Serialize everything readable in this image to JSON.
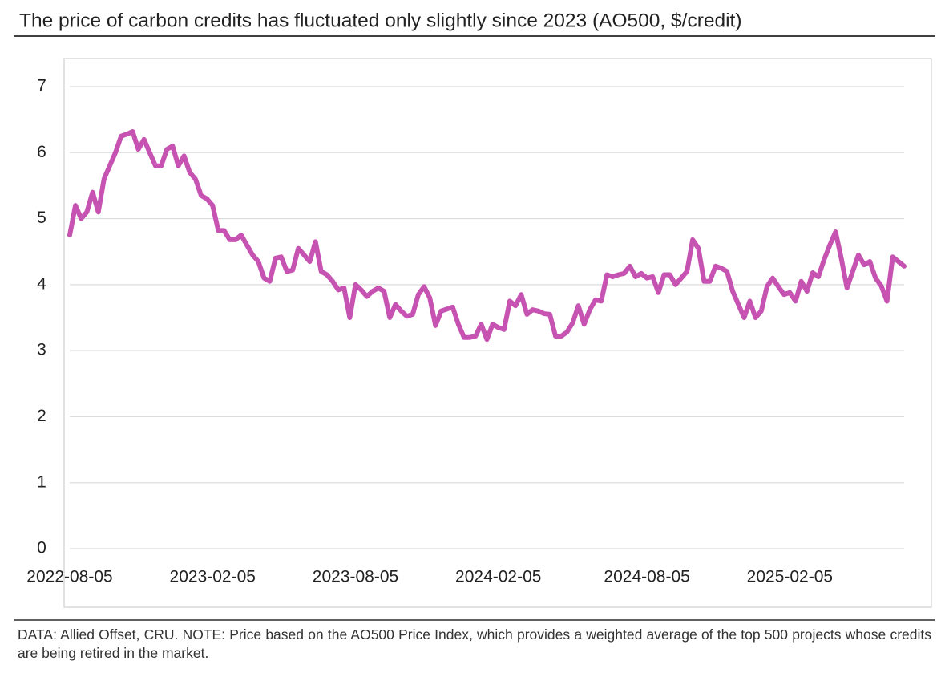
{
  "chart_data": {
    "type": "line",
    "title": "The price of carbon credits has fluctuated only slightly since 2023 (AO500, $/credit)",
    "note": "DATA: Allied Offset, CRU. NOTE: Price based on the AO500 Price Index, which provides a weighted average of the top 500 projects whose credits are being retired in the market.",
    "color": "#c653b2",
    "ylim": [
      0,
      7
    ],
    "yticks": [
      0,
      1,
      2,
      3,
      4,
      5,
      6,
      7
    ],
    "grid": true,
    "categories": [
      "2022-08-05",
      null,
      null,
      null,
      null,
      null,
      null,
      null,
      null,
      null,
      null,
      null,
      null,
      null,
      null,
      null,
      null,
      null,
      null,
      null,
      null,
      null,
      null,
      null,
      null,
      "2023-02-05",
      null,
      null,
      null,
      null,
      null,
      null,
      null,
      null,
      null,
      null,
      null,
      null,
      null,
      null,
      null,
      null,
      null,
      null,
      null,
      null,
      null,
      null,
      null,
      null,
      "2023-08-05",
      null,
      null,
      null,
      null,
      null,
      null,
      null,
      null,
      null,
      null,
      null,
      null,
      null,
      null,
      null,
      null,
      null,
      null,
      null,
      null,
      null,
      null,
      null,
      null,
      "2024-02-05",
      null,
      null,
      null,
      null,
      null,
      null,
      null,
      null,
      null,
      null,
      null,
      null,
      null,
      null,
      null,
      null,
      null,
      null,
      null,
      null,
      null,
      null,
      null,
      null,
      null,
      "2024-08-05",
      null,
      null,
      null,
      null,
      null,
      null,
      null,
      null,
      null,
      null,
      null,
      null,
      null,
      null,
      null,
      null,
      null,
      null,
      null,
      null,
      null,
      null,
      null,
      null,
      "2025-02-05",
      null,
      null,
      null,
      null,
      null,
      null,
      null,
      null,
      null,
      null,
      null,
      null,
      null,
      null,
      null,
      null,
      null,
      null,
      null,
      null
    ],
    "values": [
      4.75,
      5.2,
      5.0,
      5.1,
      5.4,
      5.1,
      5.6,
      5.8,
      6.0,
      6.25,
      6.28,
      6.32,
      6.05,
      6.2,
      6.0,
      5.8,
      5.8,
      6.05,
      6.1,
      5.8,
      5.95,
      5.7,
      5.6,
      5.35,
      5.3,
      5.2,
      4.82,
      4.82,
      4.68,
      4.68,
      4.75,
      4.6,
      4.45,
      4.35,
      4.1,
      4.05,
      4.4,
      4.42,
      4.2,
      4.22,
      4.55,
      4.45,
      4.35,
      4.65,
      4.2,
      4.15,
      4.05,
      3.92,
      3.95,
      3.5,
      4.0,
      3.92,
      3.82,
      3.9,
      3.95,
      3.9,
      3.5,
      3.7,
      3.6,
      3.52,
      3.55,
      3.85,
      3.97,
      3.8,
      3.38,
      3.6,
      3.63,
      3.66,
      3.4,
      3.2,
      3.2,
      3.22,
      3.4,
      3.17,
      3.4,
      3.35,
      3.32,
      3.75,
      3.68,
      3.85,
      3.55,
      3.62,
      3.6,
      3.56,
      3.55,
      3.22,
      3.22,
      3.28,
      3.42,
      3.68,
      3.4,
      3.62,
      3.77,
      3.75,
      4.15,
      4.12,
      4.15,
      4.17,
      4.28,
      4.12,
      4.17,
      4.1,
      4.12,
      3.88,
      4.15,
      4.15,
      4.0,
      4.1,
      4.2,
      4.68,
      4.55,
      4.05,
      4.05,
      4.28,
      4.25,
      4.2,
      3.9,
      3.7,
      3.5,
      3.75,
      3.5,
      3.6,
      3.97,
      4.1,
      3.97,
      3.85,
      3.88,
      3.75,
      4.05,
      3.9,
      4.18,
      4.12,
      4.38,
      4.6,
      4.8,
      4.4,
      3.95,
      4.2,
      4.45,
      4.3,
      4.35,
      4.1,
      3.98,
      3.75,
      4.42,
      4.35,
      4.28
    ]
  }
}
